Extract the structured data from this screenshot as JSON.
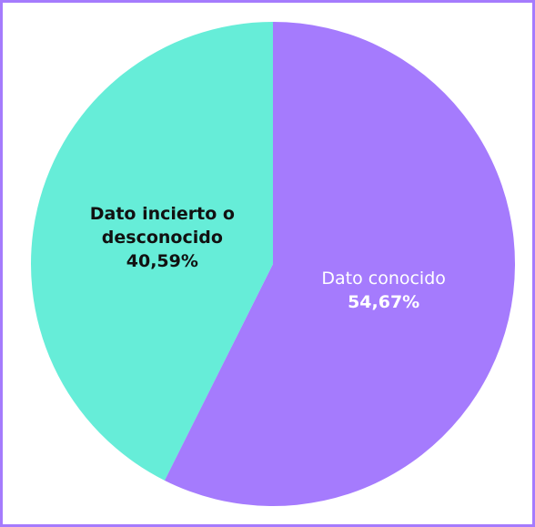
{
  "chart_data": {
    "type": "pie",
    "categories": [
      "Dato conocido",
      "Dato incierto o desconocido"
    ],
    "values": [
      54.67,
      40.59
    ],
    "value_labels": [
      "54,67%",
      "40,59%"
    ],
    "colors": [
      "#a57bfd",
      "#66edd8"
    ]
  }
}
